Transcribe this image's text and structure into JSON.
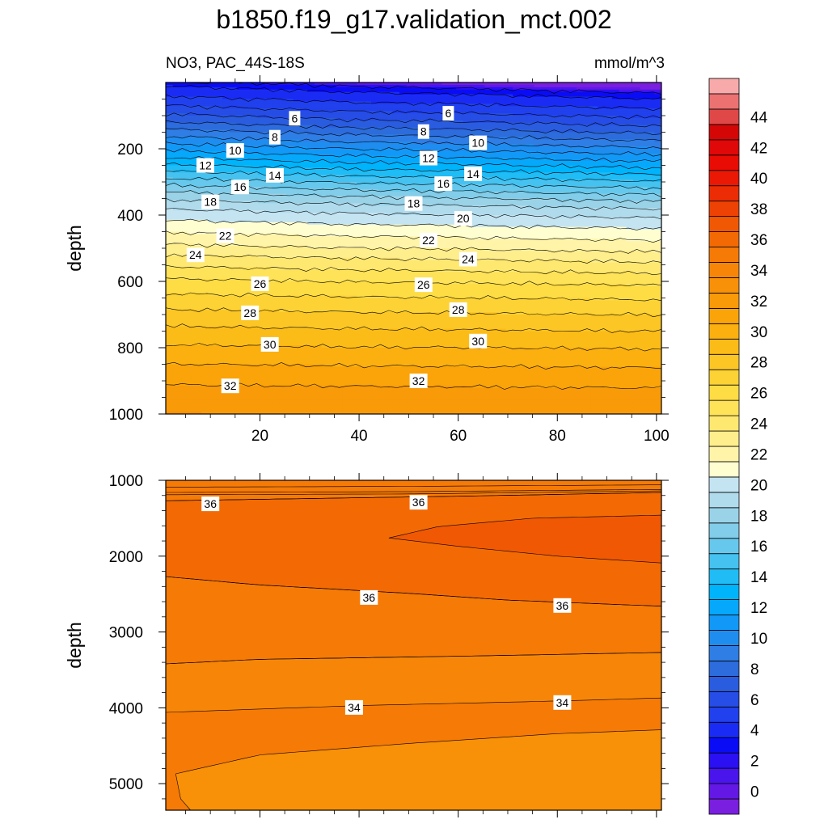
{
  "chart_data": {
    "type": "heatmap",
    "title": "b1850.f19_g17.validation_mct.002",
    "subtitle_left": "NO3, PAC_44S-18S",
    "subtitle_right": "mmol/m^3",
    "colorbar": {
      "levels": [
        0,
        2,
        4,
        6,
        8,
        10,
        12,
        14,
        16,
        18,
        20,
        22,
        24,
        26,
        28,
        30,
        32,
        34,
        36,
        38,
        40,
        42,
        44
      ],
      "tick_labels": [
        "0",
        "2",
        "4",
        "6",
        "8",
        "10",
        "12",
        "14",
        "16",
        "18",
        "20",
        "22",
        "24",
        "26",
        "28",
        "30",
        "32",
        "34",
        "36",
        "38",
        "40",
        "42",
        "44"
      ],
      "level_step": 1,
      "range": [
        -1,
        46
      ],
      "colors": [
        "#7a1fe0",
        "#6418e6",
        "#4a14ec",
        "#2a10f2",
        "#0b0cf6",
        "#1a2cf4",
        "#2140ee",
        "#264de6",
        "#2a5ce0",
        "#2c6cdc",
        "#2e7ee6",
        "#1f8df0",
        "#1299f8",
        "#06a8fc",
        "#00b4fc",
        "#20bcf6",
        "#46c2f0",
        "#66c8ec",
        "#82cde9",
        "#9ad3e8",
        "#b0dbec",
        "#c4e4f2",
        "#fffed0",
        "#fff4a8",
        "#ffee8c",
        "#ffe870",
        "#fee258",
        "#fedc44",
        "#fdd234",
        "#fcc624",
        "#fcbc18",
        "#fbb010",
        "#faa40a",
        "#f99a08",
        "#f89008",
        "#f78608",
        "#f67a06",
        "#f36a04",
        "#f05804",
        "#ee4204",
        "#ec2c04",
        "#ea1804",
        "#e80c04",
        "#e00808",
        "#d40606",
        "#e04848",
        "#ec7272",
        "#f8aaaa"
      ]
    },
    "upper_panel": {
      "ylabel": "depth",
      "x_range": [
        1,
        101
      ],
      "depth_range": [
        0,
        1000
      ],
      "x_ticks": [
        20,
        40,
        60,
        80,
        100
      ],
      "x_tick_labels": [
        "20",
        "40",
        "60",
        "80",
        "100"
      ],
      "y_ticks": [
        200,
        400,
        600,
        800,
        1000
      ],
      "y_tick_labels": [
        "200",
        "400",
        "600",
        "800",
        "1000"
      ],
      "profile": [
        {
          "depth": 0,
          "no3": -1
        },
        {
          "depth": 20,
          "no3": 3.5
        },
        {
          "depth": 50,
          "no3": 4.5
        },
        {
          "depth": 80,
          "no3": 5.5
        },
        {
          "depth": 130,
          "no3": 7.5
        },
        {
          "depth": 180,
          "no3": 9.8
        },
        {
          "depth": 230,
          "no3": 12.2
        },
        {
          "depth": 270,
          "no3": 14.2
        },
        {
          "depth": 320,
          "no3": 16.6
        },
        {
          "depth": 360,
          "no3": 18.6
        },
        {
          "depth": 410,
          "no3": 20.4
        },
        {
          "depth": 460,
          "no3": 21.8
        },
        {
          "depth": 490,
          "no3": 22.6
        },
        {
          "depth": 540,
          "no3": 24.2
        },
        {
          "depth": 600,
          "no3": 25.9
        },
        {
          "depth": 680,
          "no3": 27.7
        },
        {
          "depth": 760,
          "no3": 29.3
        },
        {
          "depth": 850,
          "no3": 30.9
        },
        {
          "depth": 930,
          "no3": 32.2
        },
        {
          "depth": 1000,
          "no3": 33.0
        }
      ],
      "x_offsets": [
        {
          "x": 1,
          "depth_offset": -25
        },
        {
          "x": 20,
          "depth_offset": -15
        },
        {
          "x": 40,
          "depth_offset": -5
        },
        {
          "x": 60,
          "depth_offset": 0
        },
        {
          "x": 80,
          "depth_offset": 8
        },
        {
          "x": 101,
          "depth_offset": 15
        }
      ],
      "contour_labels": [
        {
          "x": 27,
          "depth": 108,
          "text": "6"
        },
        {
          "x": 58,
          "depth": 93,
          "text": "6"
        },
        {
          "x": 23,
          "depth": 165,
          "text": "8"
        },
        {
          "x": 53,
          "depth": 148,
          "text": "8"
        },
        {
          "x": 15,
          "depth": 205,
          "text": "10"
        },
        {
          "x": 64,
          "depth": 182,
          "text": "10"
        },
        {
          "x": 9,
          "depth": 250,
          "text": "12"
        },
        {
          "x": 54,
          "depth": 228,
          "text": "12"
        },
        {
          "x": 23,
          "depth": 280,
          "text": "14"
        },
        {
          "x": 63,
          "depth": 275,
          "text": "14"
        },
        {
          "x": 16,
          "depth": 315,
          "text": "16"
        },
        {
          "x": 57,
          "depth": 305,
          "text": "16"
        },
        {
          "x": 10,
          "depth": 360,
          "text": "18"
        },
        {
          "x": 51,
          "depth": 365,
          "text": "18"
        },
        {
          "x": 61,
          "depth": 410,
          "text": "20"
        },
        {
          "x": 13,
          "depth": 462,
          "text": "22"
        },
        {
          "x": 54,
          "depth": 475,
          "text": "22"
        },
        {
          "x": 7,
          "depth": 520,
          "text": "24"
        },
        {
          "x": 62,
          "depth": 533,
          "text": "24"
        },
        {
          "x": 20,
          "depth": 607,
          "text": "26"
        },
        {
          "x": 53,
          "depth": 610,
          "text": "26"
        },
        {
          "x": 18,
          "depth": 695,
          "text": "28"
        },
        {
          "x": 60,
          "depth": 685,
          "text": "28"
        },
        {
          "x": 22,
          "depth": 790,
          "text": "30"
        },
        {
          "x": 64,
          "depth": 780,
          "text": "30"
        },
        {
          "x": 14,
          "depth": 915,
          "text": "32"
        },
        {
          "x": 52,
          "depth": 900,
          "text": "32"
        }
      ]
    },
    "lower_panel": {
      "ylabel": "depth",
      "x_range": [
        1,
        101
      ],
      "depth_range": [
        1000,
        5350
      ],
      "x_ticks": [
        20,
        40,
        60,
        80,
        100
      ],
      "y_ticks": [
        1000,
        2000,
        3000,
        4000,
        5000
      ],
      "y_tick_labels": [
        "1000",
        "2000",
        "3000",
        "4000",
        "5000"
      ],
      "bands": [
        {
          "value": 34.5,
          "top": [
            [
              1,
              3420
            ],
            [
              20,
              3360
            ],
            [
              60,
              3320
            ],
            [
              101,
              3270
            ]
          ],
          "bottom": [
            [
              1,
              4060
            ],
            [
              40,
              3970
            ],
            [
              80,
              3910
            ],
            [
              101,
              3870
            ]
          ]
        },
        {
          "value": 35.5,
          "top": [
            [
              1,
              2270
            ],
            [
              20,
              2380
            ],
            [
              50,
              2490
            ],
            [
              70,
              2580
            ],
            [
              101,
              2660
            ]
          ],
          "bottom": [
            [
              1,
              3420
            ],
            [
              20,
              3360
            ],
            [
              60,
              3320
            ],
            [
              101,
              3270
            ]
          ]
        },
        {
          "value": 36.5,
          "top": [
            [
              1,
              1270
            ],
            [
              30,
              1240
            ],
            [
              60,
              1210
            ],
            [
              101,
              1160
            ]
          ],
          "bottom": [
            [
              1,
              2270
            ],
            [
              20,
              2380
            ],
            [
              50,
              2490
            ],
            [
              70,
              2580
            ],
            [
              101,
              2660
            ]
          ]
        },
        {
          "value": 37.5,
          "top": [
            [
              46,
              1760
            ],
            [
              56,
              1610
            ],
            [
              75,
              1500
            ],
            [
              101,
              1460
            ]
          ],
          "bottom": [
            [
              46,
              1760
            ],
            [
              60,
              1870
            ],
            [
              80,
              2000
            ],
            [
              101,
              2090
            ]
          ]
        },
        {
          "value": 33.5,
          "top": [
            [
              3,
              4870
            ],
            [
              20,
              4620
            ],
            [
              50,
              4470
            ],
            [
              80,
              4340
            ],
            [
              101,
              4290
            ]
          ],
          "bottom": [
            [
              101,
              5350
            ],
            [
              6,
              5350
            ],
            [
              4,
              5200
            ],
            [
              3,
              4870
            ]
          ]
        }
      ],
      "background_value": 35.5,
      "top_band": {
        "value": 35.5,
        "top_depth": 1000,
        "bottom": [
          [
            1,
            1270
          ],
          [
            30,
            1240
          ],
          [
            60,
            1210
          ],
          [
            101,
            1160
          ]
        ]
      },
      "extra_lines": [
        [
          [
            1,
            1090
          ],
          [
            50,
            1080
          ],
          [
            101,
            1060
          ]
        ],
        [
          [
            1,
            1160
          ],
          [
            50,
            1150
          ],
          [
            101,
            1120
          ]
        ],
        [
          [
            1,
            1190
          ],
          [
            50,
            1180
          ],
          [
            101,
            1140
          ]
        ]
      ],
      "contour_labels": [
        {
          "x": 10,
          "depth": 1310,
          "text": "36"
        },
        {
          "x": 52,
          "depth": 1290,
          "text": "36"
        },
        {
          "x": 42,
          "depth": 2545,
          "text": "36"
        },
        {
          "x": 81,
          "depth": 2650,
          "text": "36"
        },
        {
          "x": 39,
          "depth": 3995,
          "text": "34"
        },
        {
          "x": 81,
          "depth": 3930,
          "text": "34"
        }
      ]
    }
  }
}
